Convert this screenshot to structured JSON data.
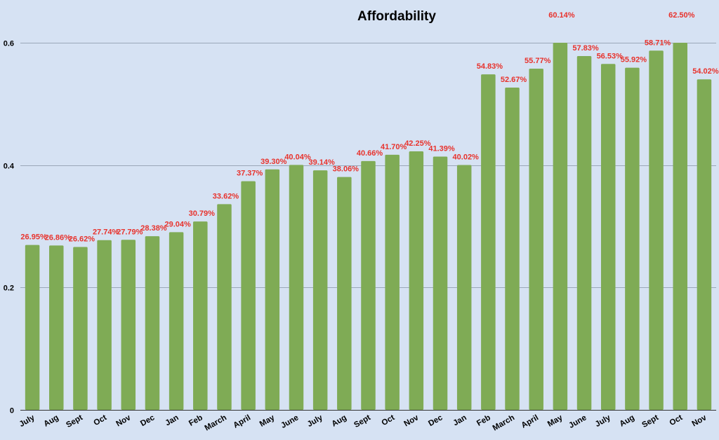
{
  "chart_data": {
    "type": "bar",
    "title": "Affordability",
    "xlabel": "",
    "ylabel": "",
    "ylim": [
      0,
      0.6
    ],
    "yticks": [
      0,
      0.2,
      0.4,
      0.6
    ],
    "ytick_labels": [
      "0",
      "0.2",
      "0.4",
      "0.6"
    ],
    "grid": true,
    "bar_color": "#7fab55",
    "label_color": "#e8322c",
    "categories": [
      "July",
      "Aug",
      "Sept",
      "Oct",
      "Nov",
      "Dec",
      "Jan",
      "Feb",
      "March",
      "April",
      "May",
      "June",
      "July",
      "Aug",
      "Sept",
      "Oct",
      "Nov",
      "Dec",
      "Jan",
      "Feb",
      "March",
      "April",
      "May",
      "June",
      "July",
      "Aug",
      "Sept",
      "Oct",
      "Nov"
    ],
    "values": [
      0.2695,
      0.2686,
      0.2662,
      0.2774,
      0.2779,
      0.2838,
      0.2904,
      0.3079,
      0.3362,
      0.3737,
      0.393,
      0.4004,
      0.3914,
      0.3806,
      0.4066,
      0.417,
      0.4225,
      0.4139,
      0.4002,
      0.5483,
      0.5267,
      0.5577,
      0.6014,
      0.5783,
      0.5653,
      0.5592,
      0.5871,
      0.625,
      0.5402
    ],
    "data_labels": [
      "26.95%",
      "26.86%",
      "26.62%",
      "27.74%",
      "27.79%",
      "28.38%",
      "29.04%",
      "30.79%",
      "33.62%",
      "37.37%",
      "39.30%",
      "40.04%",
      "39.14%",
      "38.06%",
      "40.66%",
      "41.70%",
      "42.25%",
      "41.39%",
      "40.02%",
      "54.83%",
      "52.67%",
      "55.77%",
      "60.14%",
      "57.83%",
      "56.53%",
      "55.92%",
      "58.71%",
      "62.50%",
      "54.02%"
    ]
  }
}
